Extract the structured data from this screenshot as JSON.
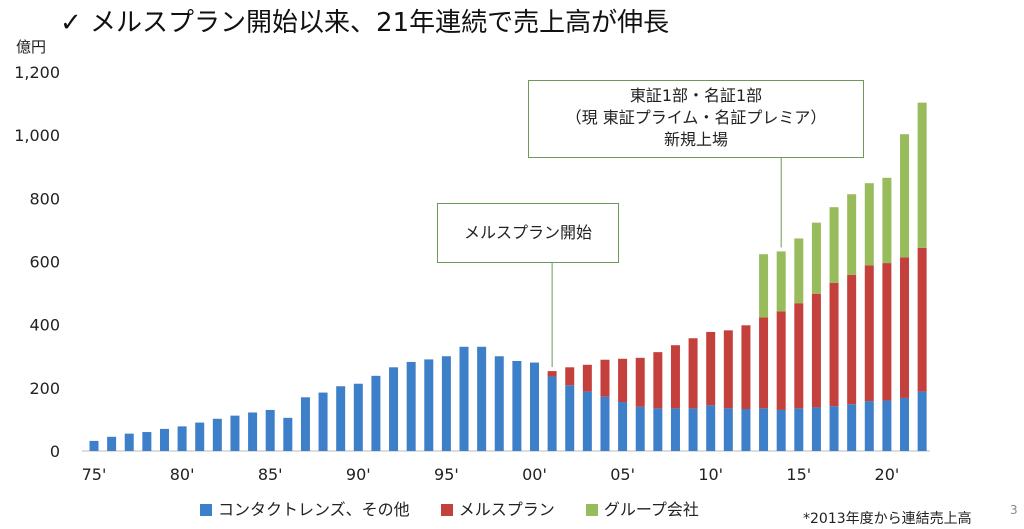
{
  "title": "✓ メルスプラン開始以来、21年連続で売上高が伸長",
  "unit": "億円",
  "footnote": "*2013年度から連結売上高",
  "page_number": "3",
  "colors": {
    "contact": "#3d7fc9",
    "mels": "#c4403c",
    "group": "#98bc5c"
  },
  "callouts": {
    "start": "メルスプラン開始",
    "listing": [
      "東証1部・名証1部",
      "（現 東証プライム・名証プレミア）",
      "新規上場"
    ]
  },
  "chart_data": {
    "type": "bar",
    "stacked": true,
    "ylim": [
      0,
      1200
    ],
    "yticks": [
      "0",
      "200",
      "400",
      "600",
      "800",
      "1,000",
      "1,200"
    ],
    "ytick_values": [
      0,
      200,
      400,
      600,
      800,
      1000,
      1200
    ],
    "xtick_labels": [
      "75'",
      "80'",
      "85'",
      "90'",
      "95'",
      "00'",
      "05'",
      "10'",
      "15'",
      "20'"
    ],
    "xtick_years": [
      1975,
      1980,
      1985,
      1990,
      1995,
      2000,
      2005,
      2010,
      2015,
      2020
    ],
    "categories": [
      1975,
      1976,
      1977,
      1978,
      1979,
      1980,
      1981,
      1982,
      1983,
      1984,
      1985,
      1986,
      1987,
      1988,
      1989,
      1990,
      1991,
      1992,
      1993,
      1994,
      1995,
      1996,
      1997,
      1998,
      1999,
      2000,
      2001,
      2002,
      2003,
      2004,
      2005,
      2006,
      2007,
      2008,
      2009,
      2010,
      2011,
      2012,
      2013,
      2014,
      2015,
      2016,
      2017,
      2018,
      2019,
      2020,
      2021,
      2022
    ],
    "grid": false,
    "legend_position": "bottom",
    "series": [
      {
        "name": "コンタクトレンズ、その他",
        "values": [
          32,
          45,
          55,
          60,
          70,
          78,
          90,
          102,
          112,
          122,
          130,
          105,
          170,
          185,
          205,
          213,
          238,
          265,
          282,
          290,
          300,
          330,
          330,
          300,
          285,
          280,
          236,
          208,
          188,
          172,
          155,
          140,
          135,
          135,
          135,
          145,
          135,
          133,
          135,
          130,
          135,
          138,
          142,
          148,
          158,
          160,
          168,
          188
        ]
      },
      {
        "name": "メルスプラン",
        "values": [
          0,
          0,
          0,
          0,
          0,
          0,
          0,
          0,
          0,
          0,
          0,
          0,
          0,
          0,
          0,
          0,
          0,
          0,
          0,
          0,
          0,
          0,
          0,
          0,
          0,
          0,
          17,
          57,
          85,
          117,
          137,
          155,
          178,
          200,
          222,
          232,
          247,
          265,
          288,
          312,
          333,
          360,
          390,
          410,
          430,
          435,
          445,
          455
        ]
      },
      {
        "name": "グループ会社",
        "values": [
          0,
          0,
          0,
          0,
          0,
          0,
          0,
          0,
          0,
          0,
          0,
          0,
          0,
          0,
          0,
          0,
          0,
          0,
          0,
          0,
          0,
          0,
          0,
          0,
          0,
          0,
          0,
          0,
          0,
          0,
          0,
          0,
          0,
          0,
          0,
          0,
          0,
          0,
          200,
          190,
          205,
          225,
          240,
          255,
          260,
          270,
          390,
          460
        ]
      }
    ],
    "annotations": [
      {
        "text_ref": "callouts.start",
        "x": 2001
      },
      {
        "text_ref": "callouts.listing",
        "x": 2014
      }
    ]
  }
}
